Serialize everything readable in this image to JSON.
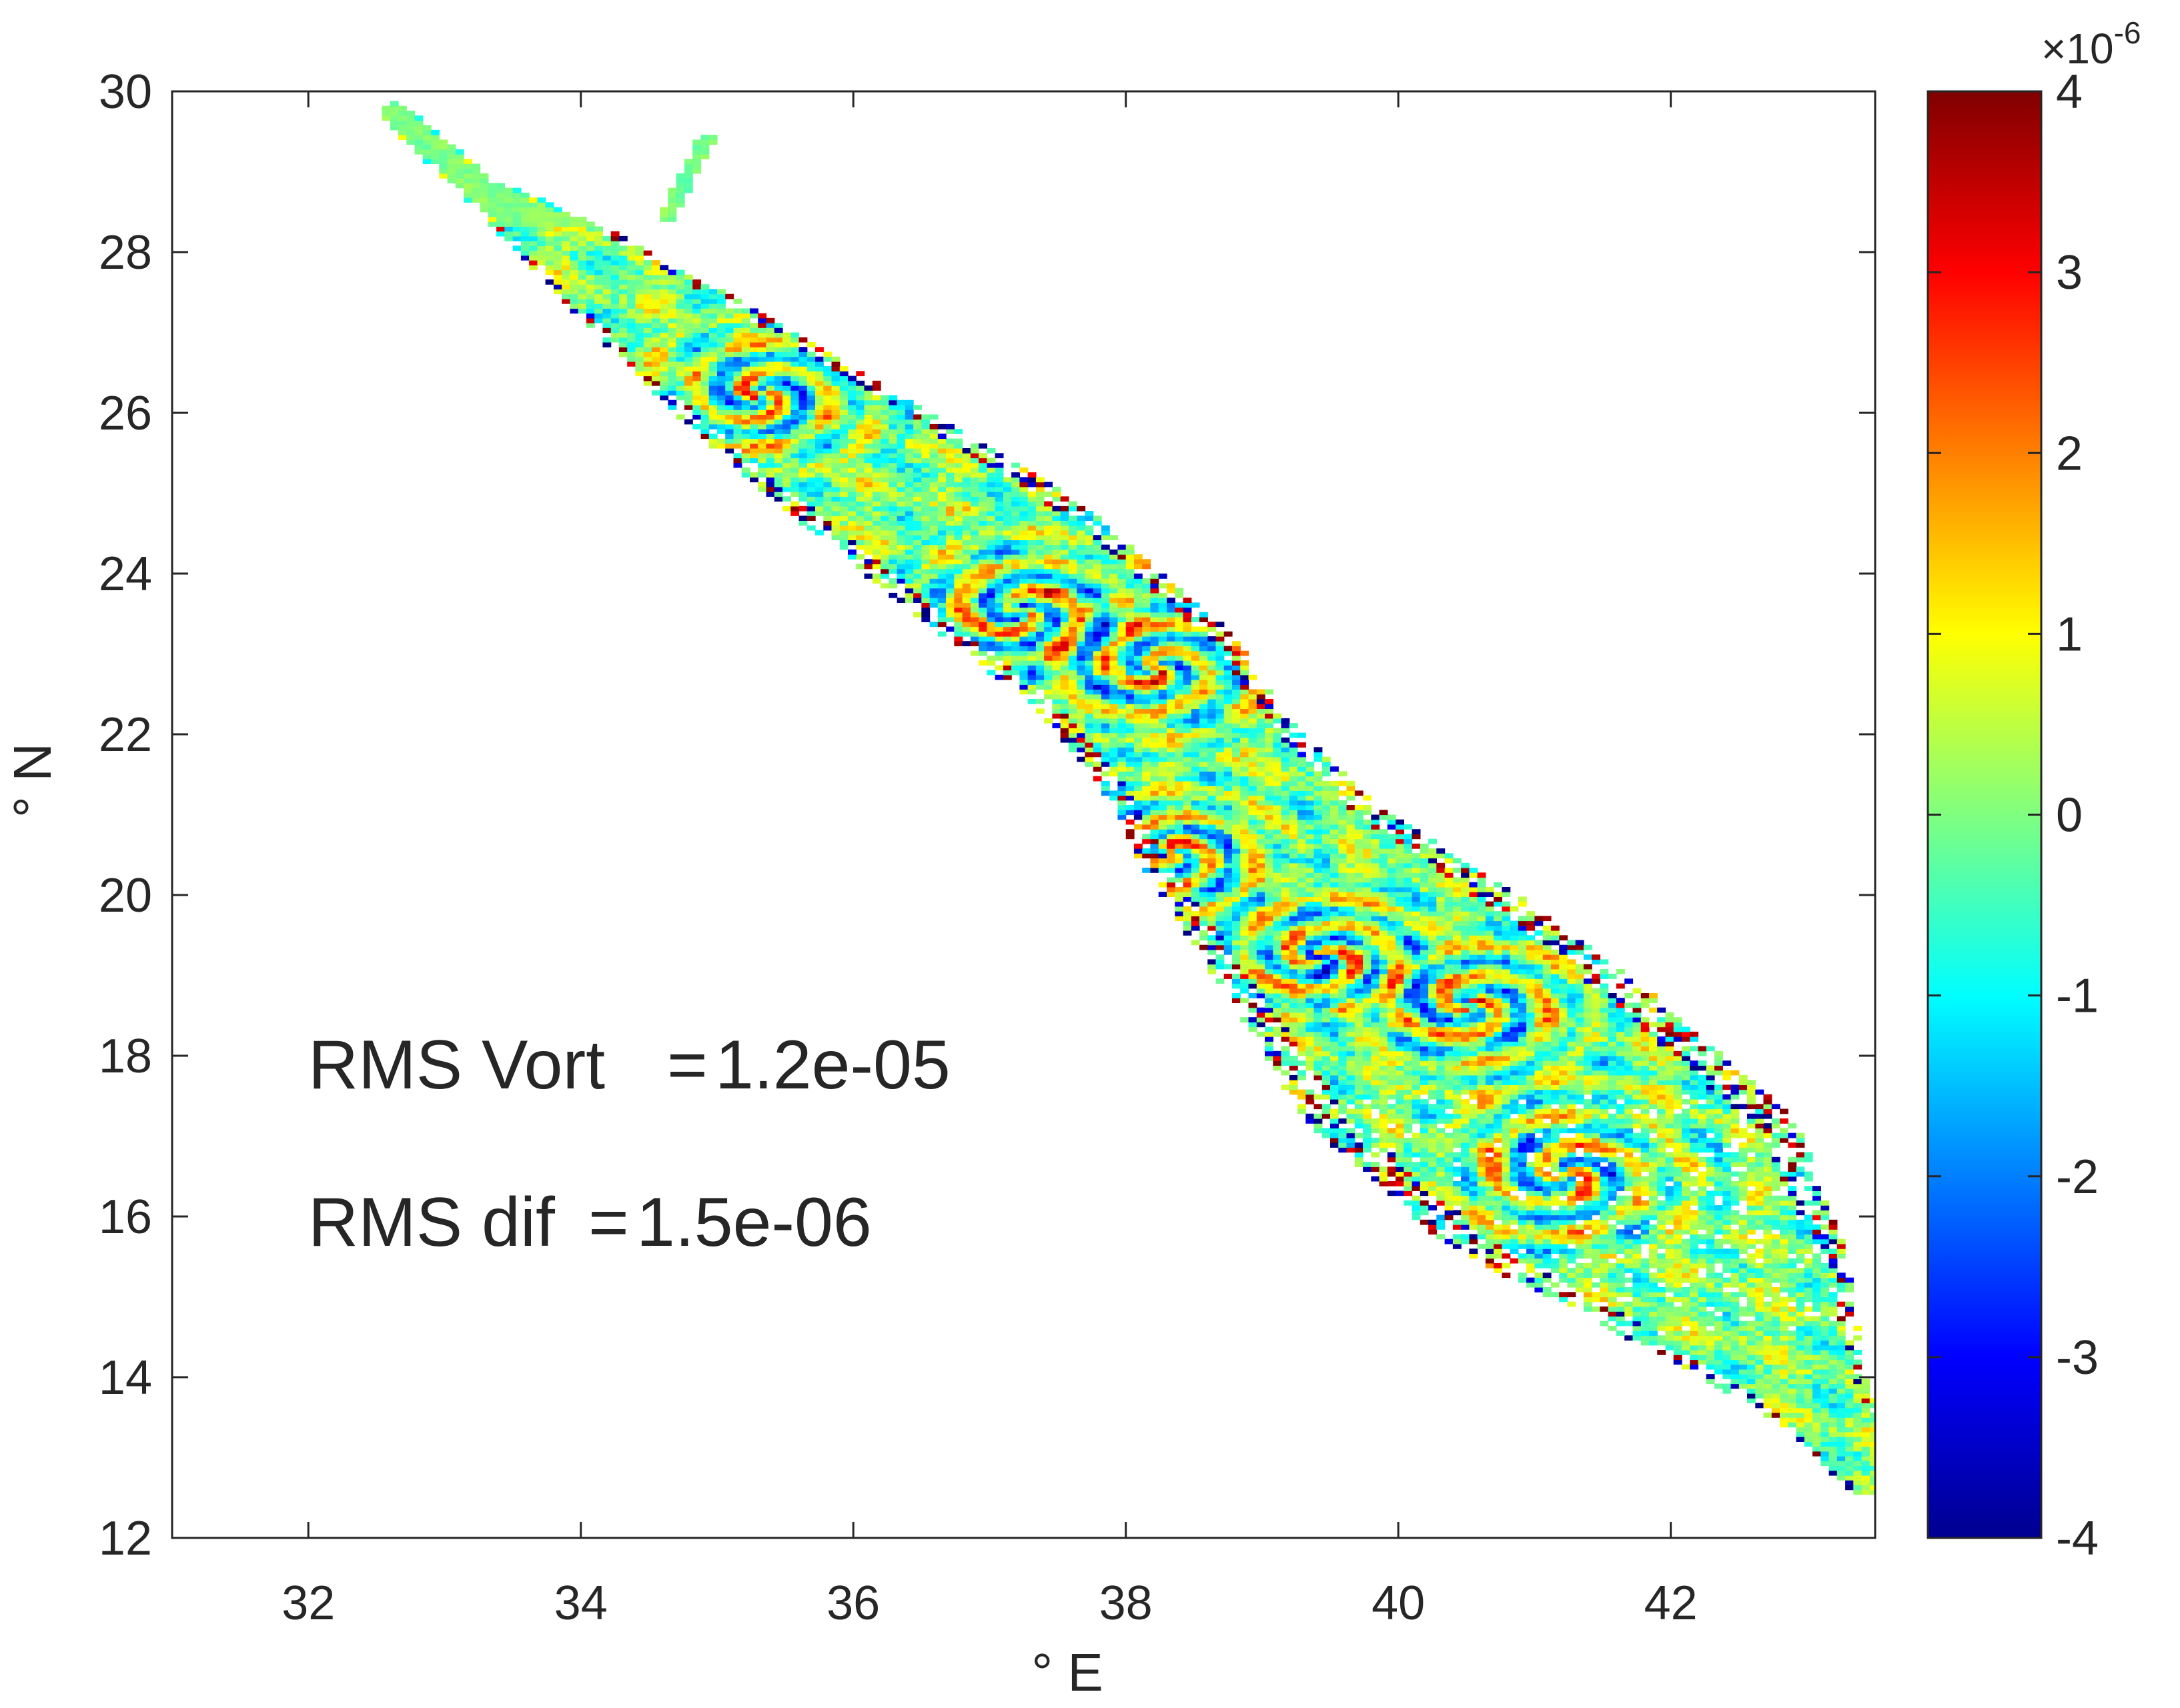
{
  "chart_data": {
    "type": "heatmap",
    "title": "",
    "xlabel": "° E",
    "ylabel": "° N",
    "xlim": [
      31,
      43.5
    ],
    "ylim": [
      12,
      30
    ],
    "xticks": [
      32,
      34,
      36,
      38,
      40,
      42
    ],
    "yticks": [
      12,
      14,
      16,
      18,
      20,
      22,
      24,
      26,
      28,
      30
    ],
    "grid": false,
    "colorbar": {
      "colormap": "jet",
      "range": [
        -4,
        4
      ],
      "ticks": [
        -4,
        -3,
        -2,
        -1,
        0,
        1,
        2,
        3,
        4
      ],
      "exponent_label": "×10",
      "exponent": "-6"
    },
    "annotations": [
      {
        "label": "RMS Vort",
        "value": "1.2e-05"
      },
      {
        "label": "RMS dif",
        "value": "1.5e-06"
      }
    ],
    "domain_centerline": [
      {
        "lon": 32.6,
        "lat": 29.7,
        "halfwidth": 0.12
      },
      {
        "lon": 33.2,
        "lat": 28.8,
        "halfwidth": 0.15
      },
      {
        "lon": 34.0,
        "lat": 27.9,
        "halfwidth": 0.4
      },
      {
        "lon": 35.0,
        "lat": 26.6,
        "halfwidth": 0.65
      },
      {
        "lon": 36.0,
        "lat": 25.4,
        "halfwidth": 0.8
      },
      {
        "lon": 37.0,
        "lat": 24.2,
        "halfwidth": 0.9
      },
      {
        "lon": 38.0,
        "lat": 22.8,
        "halfwidth": 0.85
      },
      {
        "lon": 38.5,
        "lat": 21.7,
        "halfwidth": 0.8
      },
      {
        "lon": 39.0,
        "lat": 20.6,
        "halfwidth": 0.95
      },
      {
        "lon": 39.8,
        "lat": 19.3,
        "halfwidth": 1.25
      },
      {
        "lon": 40.6,
        "lat": 17.9,
        "halfwidth": 1.5
      },
      {
        "lon": 41.6,
        "lat": 16.4,
        "halfwidth": 1.5
      },
      {
        "lon": 42.3,
        "lat": 15.2,
        "halfwidth": 1.05
      },
      {
        "lon": 43.0,
        "lat": 13.8,
        "halfwidth": 0.45
      },
      {
        "lon": 43.45,
        "lat": 12.7,
        "halfwidth": 0.2
      }
    ],
    "gulf_branch": [
      {
        "lon": 34.6,
        "lat": 28.4
      },
      {
        "lon": 34.9,
        "lat": 29.4
      }
    ],
    "eddies": [
      {
        "lon": 35.3,
        "lat": 26.2,
        "radius": 0.55
      },
      {
        "lon": 37.2,
        "lat": 23.5,
        "radius": 0.55
      },
      {
        "lon": 38.2,
        "lat": 22.8,
        "radius": 0.55
      },
      {
        "lon": 38.3,
        "lat": 20.5,
        "radius": 0.5
      },
      {
        "lon": 39.4,
        "lat": 19.2,
        "radius": 0.5
      },
      {
        "lon": 40.5,
        "lat": 18.6,
        "radius": 0.55
      },
      {
        "lon": 41.2,
        "lat": 16.5,
        "radius": 0.6
      }
    ]
  }
}
